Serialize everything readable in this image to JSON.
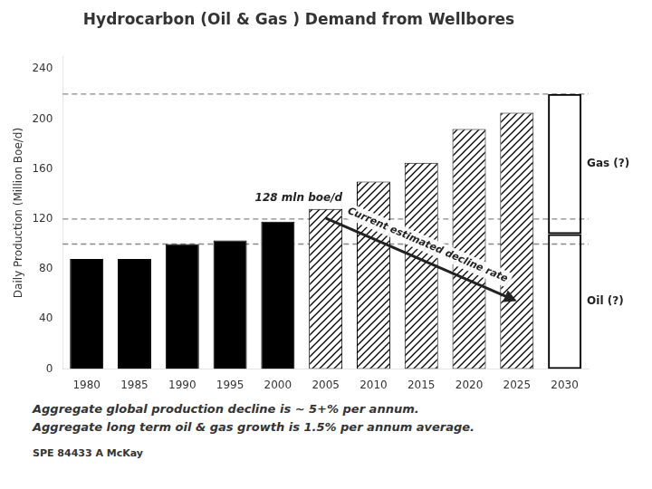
{
  "chart_data": {
    "type": "bar",
    "title": "Hydrocarbon (Oil & Gas ) Demand from Wellbores",
    "y_label": "Daily Production (Million Boe/d)",
    "categories": [
      "1980",
      "1985",
      "1990",
      "1995",
      "2000",
      "2005",
      "2010",
      "2015",
      "2020",
      "2025",
      "2030"
    ],
    "series": [
      {
        "color": "#000000",
        "line_style": "solid",
        "values": [
          88,
          88,
          100,
          103,
          118,
          null,
          null,
          null,
          null,
          null,
          null
        ]
      },
      {
        "color": "#000000",
        "line_style": "hatched",
        "values": [
          null,
          null,
          null,
          null,
          null,
          128,
          150,
          165,
          192,
          205,
          null
        ]
      },
      {
        "name": "Oil (?)",
        "color": "#000000",
        "line_style": "outline",
        "values": [
          null,
          null,
          null,
          null,
          null,
          null,
          null,
          null,
          null,
          null,
          108
        ]
      },
      {
        "name": "Gas (?)",
        "color": "#000000",
        "line_style": "outline",
        "values": [
          null,
          null,
          null,
          null,
          null,
          null,
          null,
          null,
          null,
          null,
          112
        ]
      }
    ],
    "stacked": true,
    "ylim": [
      0,
      250
    ],
    "yticks": [
      0,
      40,
      80,
      120,
      160,
      200,
      240
    ],
    "grid": false,
    "hlines": [
      220,
      120,
      100
    ],
    "annotations": [
      "128 mln boe/d",
      "Current estimated decline rate"
    ],
    "notes": [
      "Aggregate global production decline is ~ 5+% per annum.",
      "Aggregate long term oil & gas growth is 1.5% per annum average."
    ],
    "footnote": "SPE 84433  A McKay"
  }
}
